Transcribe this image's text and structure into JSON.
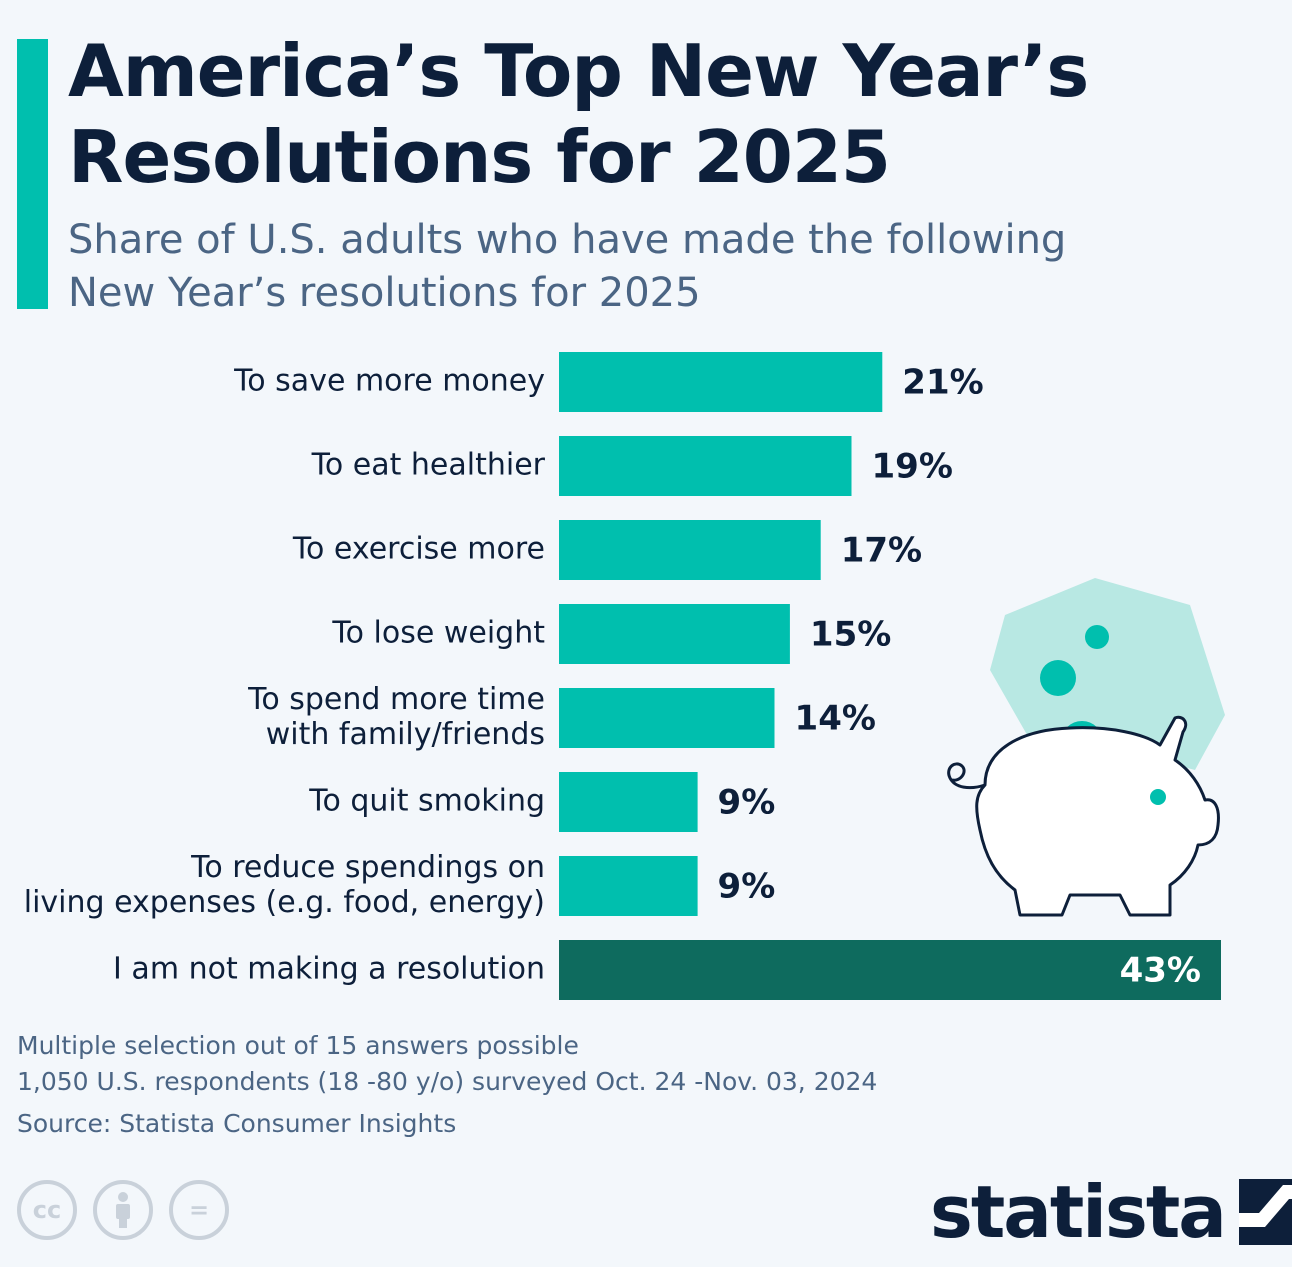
{
  "header": {
    "title": "America’s Top New Year’s Resolutions for 2025",
    "subtitle": "Share of U.S. adults who have made the following New Year’s resolutions for 2025"
  },
  "colors": {
    "accent": "#00bfae",
    "bar": "#00bfae",
    "highlight_bar": "#0e6b5e",
    "title": "#0d1f3a",
    "subtitle": "#4b6584",
    "background": "#f3f7fb"
  },
  "chart_data": {
    "type": "bar",
    "orientation": "horizontal",
    "title": "America’s Top New Year’s Resolutions for 2025",
    "subtitle": "Share of U.S. adults who have made the following New Year’s resolutions for 2025",
    "categories": [
      [
        "To save more money"
      ],
      [
        "To eat healthier"
      ],
      [
        "To exercise more"
      ],
      [
        "To lose weight"
      ],
      [
        "To spend more time",
        "with family/friends"
      ],
      [
        "To quit smoking"
      ],
      [
        "To reduce spendings on",
        "living expenses (e.g. food, energy)"
      ],
      [
        "I am not making a resolution"
      ]
    ],
    "values": [
      21,
      19,
      17,
      15,
      14,
      9,
      9,
      43
    ],
    "value_labels": [
      "21%",
      "19%",
      "17%",
      "15%",
      "14%",
      "9%",
      "9%",
      "43%"
    ],
    "highlighted_index": 7,
    "unit": "%",
    "xlim": [
      0,
      43
    ],
    "grid": false,
    "legend": "none"
  },
  "notes": {
    "line1": "Multiple selection out of 15 answers possible",
    "line2": "1,050 U.S. respondents (18 -80 y/o) surveyed Oct. 24 -Nov. 03, 2024",
    "source": "Source: Statista Consumer Insights"
  },
  "license": {
    "cc": "cc",
    "equals": "="
  },
  "brand": {
    "name": "statista"
  },
  "illustration": {
    "icon": "piggy-bank-icon"
  }
}
